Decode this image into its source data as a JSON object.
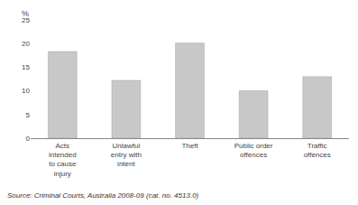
{
  "chart_data": {
    "type": "bar",
    "categories": [
      "Acts\nintended\nto cause\ninjury",
      "Unlawful\nentry with\nintent",
      "Theft",
      "Public order\noffences",
      "Traffic\noffences"
    ],
    "values": [
      18.3,
      12.2,
      20.1,
      10.0,
      13.0
    ],
    "color": "#c8c8c8",
    "ylabel": "%",
    "ylim": [
      0,
      25
    ],
    "yticks": [
      0,
      5,
      10,
      15,
      20,
      25
    ],
    "grid": false,
    "annotations": [
      "Source: Criminal Courts, Australia 2008-09 (cat. no. 4513.0)"
    ]
  }
}
